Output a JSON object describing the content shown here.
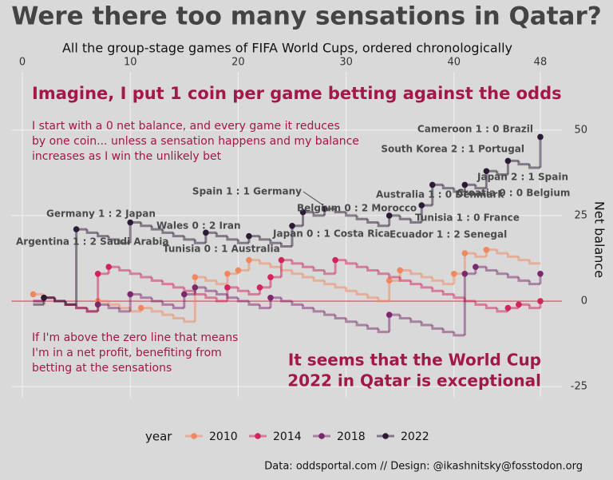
{
  "chart_data": {
    "type": "step",
    "title": "Were there too many sensations in Qatar?",
    "subtitle": "All the group-stage games of FIFA World Cups, ordered chronologically",
    "y_label": "Net balance",
    "legend_title": "year",
    "caption": "Data: oddsportal.com // Design: @ikashnitsky@fosstodon.org",
    "headline": "Imagine, I put 1 coin per game betting against the odds",
    "explanation": [
      "I start with a 0 net balance, and every game it reduces",
      "by one coin... unless a sensation happens and my balance",
      "increases as I win the unlikely bet"
    ],
    "zero_note": [
      "If I'm above the zero line that means",
      "I'm in a net profit, benefiting from",
      "betting at the sensations"
    ],
    "conclusion": [
      "It seems that the World Cup",
      "2022 in Qatar is exceptional"
    ],
    "annotations": [
      "Cameroon 1 : 0 Brazil",
      "South Korea 2 : 1 Portugal",
      "Japan 2 : 1 Spain",
      "Croatia 0 : 0 Belgium",
      "Australia 1 : 0 Denmark",
      "Tunisia 1 : 0 France",
      "Ecuador 1 : 2 Senegal",
      "Belgium 0 : 2 Morocco",
      "Spain 1 : 1 Germany",
      "Japan 0 : 1 Costa Rica",
      "Wales 0 : 2 Iran",
      "Tunisia 0 : 1 Australia",
      "Germany 1 : 2 Japan",
      "Argentina 1 : 2 Saudi Arabia"
    ],
    "x": [
      1,
      2,
      3,
      4,
      5,
      6,
      7,
      8,
      9,
      10,
      11,
      12,
      13,
      14,
      15,
      16,
      17,
      18,
      19,
      20,
      21,
      22,
      23,
      24,
      25,
      26,
      27,
      28,
      29,
      30,
      31,
      32,
      33,
      34,
      35,
      36,
      37,
      38,
      39,
      40,
      41,
      42,
      43,
      44,
      45,
      46,
      47,
      48
    ],
    "xlim": [
      -1,
      50
    ],
    "xticks": [
      0,
      10,
      20,
      30,
      40,
      48
    ],
    "ylim": [
      -28,
      67
    ],
    "yticks": [
      -25,
      0,
      25,
      50
    ],
    "grid": true,
    "series": [
      {
        "name": "2010",
        "color": "#f0875f",
        "values": [
          2,
          1,
          0,
          -1,
          -2,
          -3,
          0,
          -1,
          -2,
          -3,
          -2,
          -3,
          -4,
          -5,
          -6,
          7,
          6,
          5,
          8,
          9,
          12,
          11,
          10,
          9,
          8,
          7,
          6,
          5,
          4,
          3,
          2,
          1,
          0,
          6,
          9,
          8,
          7,
          6,
          5,
          8,
          14,
          13,
          15,
          14,
          13,
          12,
          11,
          11
        ]
      },
      {
        "name": "2014",
        "color": "#d0245a",
        "values": [
          0,
          1,
          0,
          -1,
          -2,
          -3,
          8,
          10,
          9,
          8,
          7,
          6,
          5,
          4,
          3,
          2,
          1,
          0,
          4,
          3,
          2,
          4,
          7,
          12,
          11,
          10,
          9,
          8,
          12,
          11,
          10,
          9,
          8,
          7,
          6,
          5,
          4,
          3,
          2,
          1,
          0,
          -1,
          -2,
          -3,
          -2,
          -1,
          -2,
          0
        ]
      },
      {
        "name": "2018",
        "color": "#7a2a6c",
        "values": [
          0,
          1,
          0,
          -1,
          -2,
          -3,
          -1,
          -2,
          -3,
          2,
          1,
          0,
          -1,
          -2,
          2,
          4,
          3,
          2,
          1,
          0,
          -1,
          -2,
          1,
          0,
          -1,
          -2,
          -3,
          -4,
          -5,
          -6,
          -7,
          -8,
          -9,
          -4,
          -5,
          -6,
          -7,
          -8,
          -9,
          -10,
          8,
          10,
          9,
          8,
          7,
          6,
          5,
          8
        ]
      },
      {
        "name": "2022",
        "color": "#2c1a36",
        "values": [
          -1,
          1,
          0,
          -1,
          21,
          20,
          19,
          18,
          17,
          23,
          22,
          21,
          20,
          19,
          18,
          17,
          20,
          19,
          18,
          17,
          19,
          18,
          17,
          16,
          22,
          26,
          25,
          27,
          26,
          25,
          24,
          23,
          22,
          25,
          24,
          23,
          28,
          34,
          33,
          32,
          34,
          33,
          38,
          37,
          41,
          40,
          39,
          48
        ]
      }
    ]
  }
}
